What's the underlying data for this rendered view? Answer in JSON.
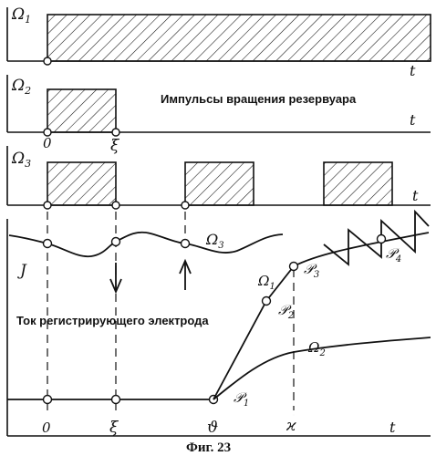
{
  "figure": {
    "caption": "Фиг. 23",
    "title_pulses": "Импульсы вращения резервуара",
    "title_current": "Ток регистрирующего электрода"
  },
  "panels": {
    "omega1": {
      "label": "Ω",
      "sub": "1",
      "t_label": "t"
    },
    "omega2": {
      "label": "Ω",
      "sub": "2",
      "t_label": "t",
      "tick0": "0",
      "tick_xi": "ξ"
    },
    "omega3": {
      "label": "Ω",
      "sub": "3",
      "t_label": "t"
    }
  },
  "current_plot": {
    "y_label": "J",
    "t_label": "t",
    "ticks": [
      "0",
      "ξ",
      "ϑ",
      "ϰ"
    ],
    "curve_labels": {
      "omega3_wave": {
        "label": "Ω",
        "sub": "3"
      },
      "omega1_branch": {
        "label": "Ω",
        "sub": "1"
      },
      "omega2_branch": {
        "label": "Ω",
        "sub": "2"
      }
    },
    "points": [
      {
        "label": "𝒫",
        "sub": "1"
      },
      {
        "label": "𝒫",
        "sub": "2"
      },
      {
        "label": "𝒫",
        "sub": "3"
      },
      {
        "label": "𝒫",
        "sub": "4"
      }
    ]
  }
}
